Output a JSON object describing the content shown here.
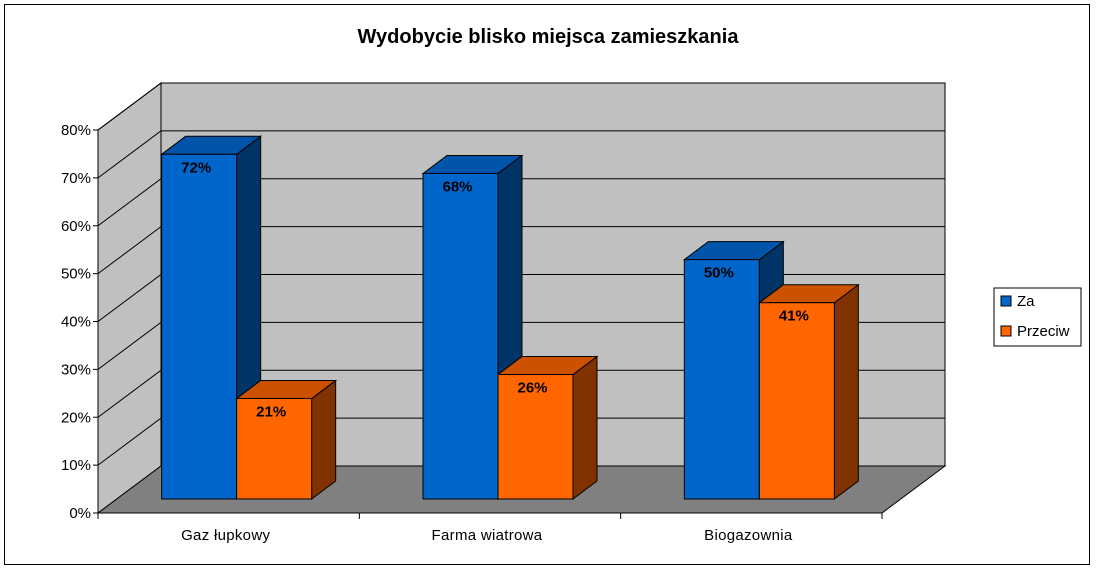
{
  "chart_data": {
    "type": "bar",
    "title": "Wydobycie blisko miejsca zamieszkania",
    "xlabel": "",
    "ylabel": "",
    "categories": [
      "Gaz łupkowy",
      "Farma wiatrowa",
      "Biogazownia"
    ],
    "series": [
      {
        "name": "Za",
        "values": [
          72,
          68,
          50
        ],
        "labels": [
          "72%",
          "68%",
          "50%"
        ],
        "color": "#0066CC",
        "side_color": "#003366",
        "top_color": "#0055AA"
      },
      {
        "name": "Przeciw",
        "values": [
          21,
          26,
          41
        ],
        "labels": [
          "21%",
          "26%",
          "41%"
        ],
        "color": "#FF6600",
        "side_color": "#803300",
        "top_color": "#CC5200"
      }
    ],
    "ylim": [
      0,
      80
    ],
    "yticks": [
      "0%",
      "10%",
      "20%",
      "30%",
      "40%",
      "50%",
      "60%",
      "70%",
      "80%"
    ],
    "grid": true,
    "legend_position": "right",
    "style": "3d-clustered-column",
    "wall_color": "#C0C0C0",
    "floor_color": "#808080"
  }
}
